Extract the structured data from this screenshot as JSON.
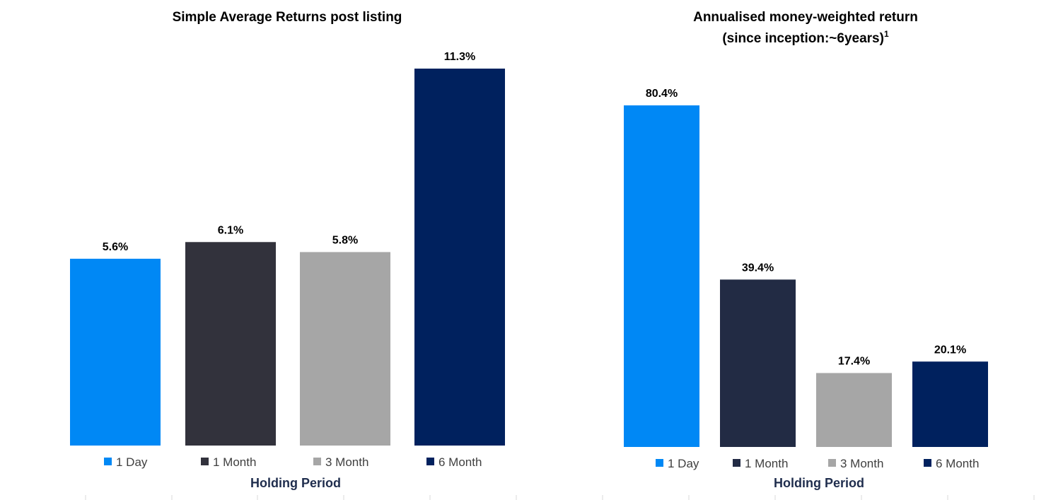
{
  "chart_data": [
    {
      "type": "bar",
      "title": "Simple Average Returns post listing",
      "xlabel": "Holding Period",
      "ylabel": "",
      "categories": [
        "1 Day",
        "1 Month",
        "3 Month",
        "6 Month"
      ],
      "values": [
        5.6,
        6.1,
        5.8,
        11.3
      ],
      "data_labels": [
        "5.6%",
        "6.1%",
        "5.8%",
        "11.3%"
      ],
      "colors": [
        "#0088f5",
        "#32323c",
        "#a6a6a6",
        "#00215e"
      ],
      "ylim": [
        0,
        11.3
      ],
      "legend_position": "bottom",
      "grid": false
    },
    {
      "type": "bar",
      "title": "Annualised money-weighted return",
      "title_line2": "(since inception:~6years)",
      "title_superscript": "1",
      "xlabel": "Holding Period",
      "ylabel": "",
      "categories": [
        "1 Day",
        "1 Month",
        "3 Month",
        "6 Month"
      ],
      "values": [
        80.4,
        39.4,
        17.4,
        20.1
      ],
      "data_labels": [
        "80.4%",
        "39.4%",
        "17.4%",
        "20.1%"
      ],
      "colors": [
        "#0088f5",
        "#222b44",
        "#a6a6a6",
        "#00215e"
      ],
      "ylim": [
        0,
        80.4
      ],
      "legend_position": "bottom",
      "grid": false
    }
  ]
}
